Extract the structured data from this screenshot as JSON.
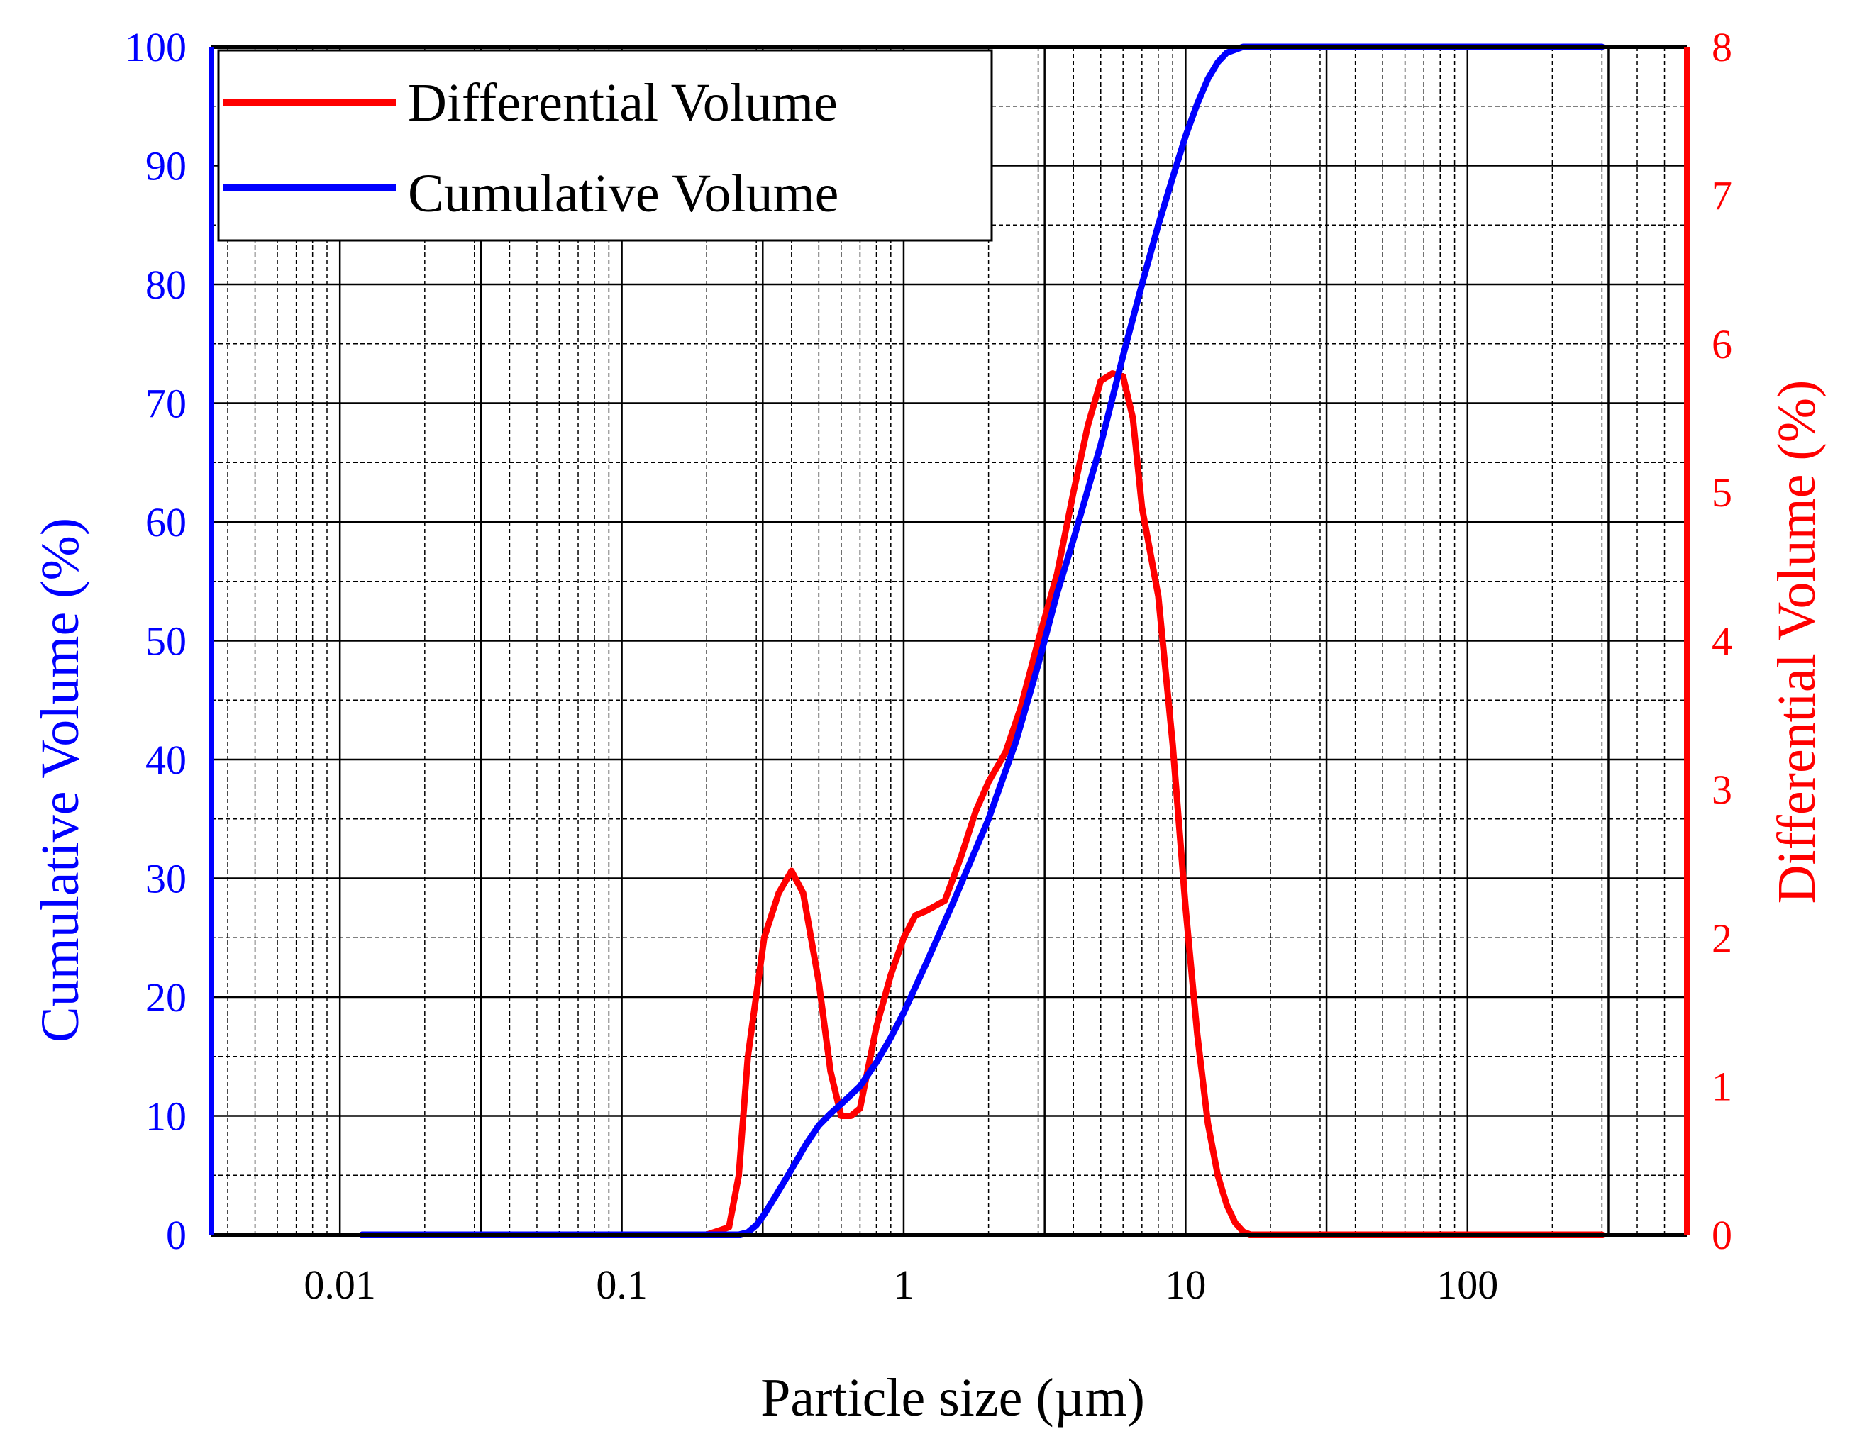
{
  "chart_data": {
    "type": "line",
    "x_scale": "log",
    "xlabel": "Particle size (µm)",
    "ylabel_left": "Cumulative  Volume (%)",
    "ylabel_right": "Differential Volume (%)",
    "xlim": [
      0.0035,
      600
    ],
    "ylim_left": [
      0,
      100
    ],
    "ylim_right": [
      0,
      8
    ],
    "x_ticks": [
      {
        "value": 0.01,
        "label": "0.01"
      },
      {
        "value": 0.1,
        "label": "0.1"
      },
      {
        "value": 1,
        "label": "1"
      },
      {
        "value": 10,
        "label": "10"
      },
      {
        "value": 100,
        "label": "100"
      }
    ],
    "y_left_ticks": [
      "0",
      "10",
      "20",
      "30",
      "40",
      "50",
      "60",
      "70",
      "80",
      "90",
      "100"
    ],
    "y_right_ticks": [
      "0",
      "1",
      "2",
      "3",
      "4",
      "5",
      "6",
      "7",
      "8"
    ],
    "grid": true,
    "legend_position": "top-left",
    "colors": {
      "left_axis": "#0000ff",
      "right_axis": "#ff0000",
      "axes": "#000000"
    },
    "series": [
      {
        "name": "Differential Volume",
        "axis": "right",
        "color": "#ff0000",
        "x": [
          0.012,
          0.05,
          0.1,
          0.2,
          0.24,
          0.26,
          0.28,
          0.32,
          0.36,
          0.4,
          0.44,
          0.5,
          0.55,
          0.6,
          0.65,
          0.7,
          0.8,
          0.9,
          1.0,
          1.1,
          1.2,
          1.4,
          1.6,
          1.8,
          2.0,
          2.3,
          2.6,
          3.0,
          3.5,
          4.0,
          4.5,
          5.0,
          5.5,
          6.0,
          6.5,
          7.0,
          8.0,
          9.0,
          10.0,
          11.0,
          12.0,
          13.0,
          14.0,
          15.0,
          16.0,
          17.0,
          18.0,
          25,
          50,
          100,
          300
        ],
        "values": [
          0,
          0,
          0,
          0,
          0.05,
          0.4,
          1.2,
          2.0,
          2.3,
          2.45,
          2.3,
          1.7,
          1.1,
          0.8,
          0.8,
          0.85,
          1.4,
          1.75,
          2.0,
          2.15,
          2.18,
          2.25,
          2.55,
          2.85,
          3.05,
          3.25,
          3.55,
          4.0,
          4.45,
          5.0,
          5.45,
          5.75,
          5.8,
          5.78,
          5.5,
          4.9,
          4.3,
          3.3,
          2.2,
          1.35,
          0.75,
          0.4,
          0.2,
          0.08,
          0.02,
          0,
          0,
          0,
          0,
          0,
          0
        ]
      },
      {
        "name": "Cumulative  Volume",
        "axis": "left",
        "color": "#0000ff",
        "x": [
          0.012,
          0.05,
          0.1,
          0.2,
          0.26,
          0.28,
          0.3,
          0.32,
          0.35,
          0.4,
          0.45,
          0.5,
          0.55,
          0.6,
          0.7,
          0.8,
          0.9,
          1.0,
          1.2,
          1.5,
          2.0,
          2.5,
          3.0,
          3.5,
          4.0,
          5.0,
          6.0,
          7.0,
          8.0,
          9.0,
          10.0,
          11.0,
          12.0,
          13.0,
          14.0,
          16.0,
          18.0,
          25,
          50,
          100,
          300
        ],
        "values": [
          0,
          0,
          0,
          0,
          0,
          0.2,
          0.8,
          1.7,
          3.2,
          5.5,
          7.6,
          9.2,
          10.2,
          11.0,
          12.5,
          14.5,
          16.6,
          18.7,
          22.8,
          28.0,
          35.0,
          41.5,
          48.0,
          54.0,
          58.5,
          66.5,
          74.0,
          80.0,
          85.0,
          89.0,
          92.5,
          95.2,
          97.3,
          98.7,
          99.5,
          100,
          100,
          100,
          100,
          100,
          100
        ]
      }
    ]
  }
}
